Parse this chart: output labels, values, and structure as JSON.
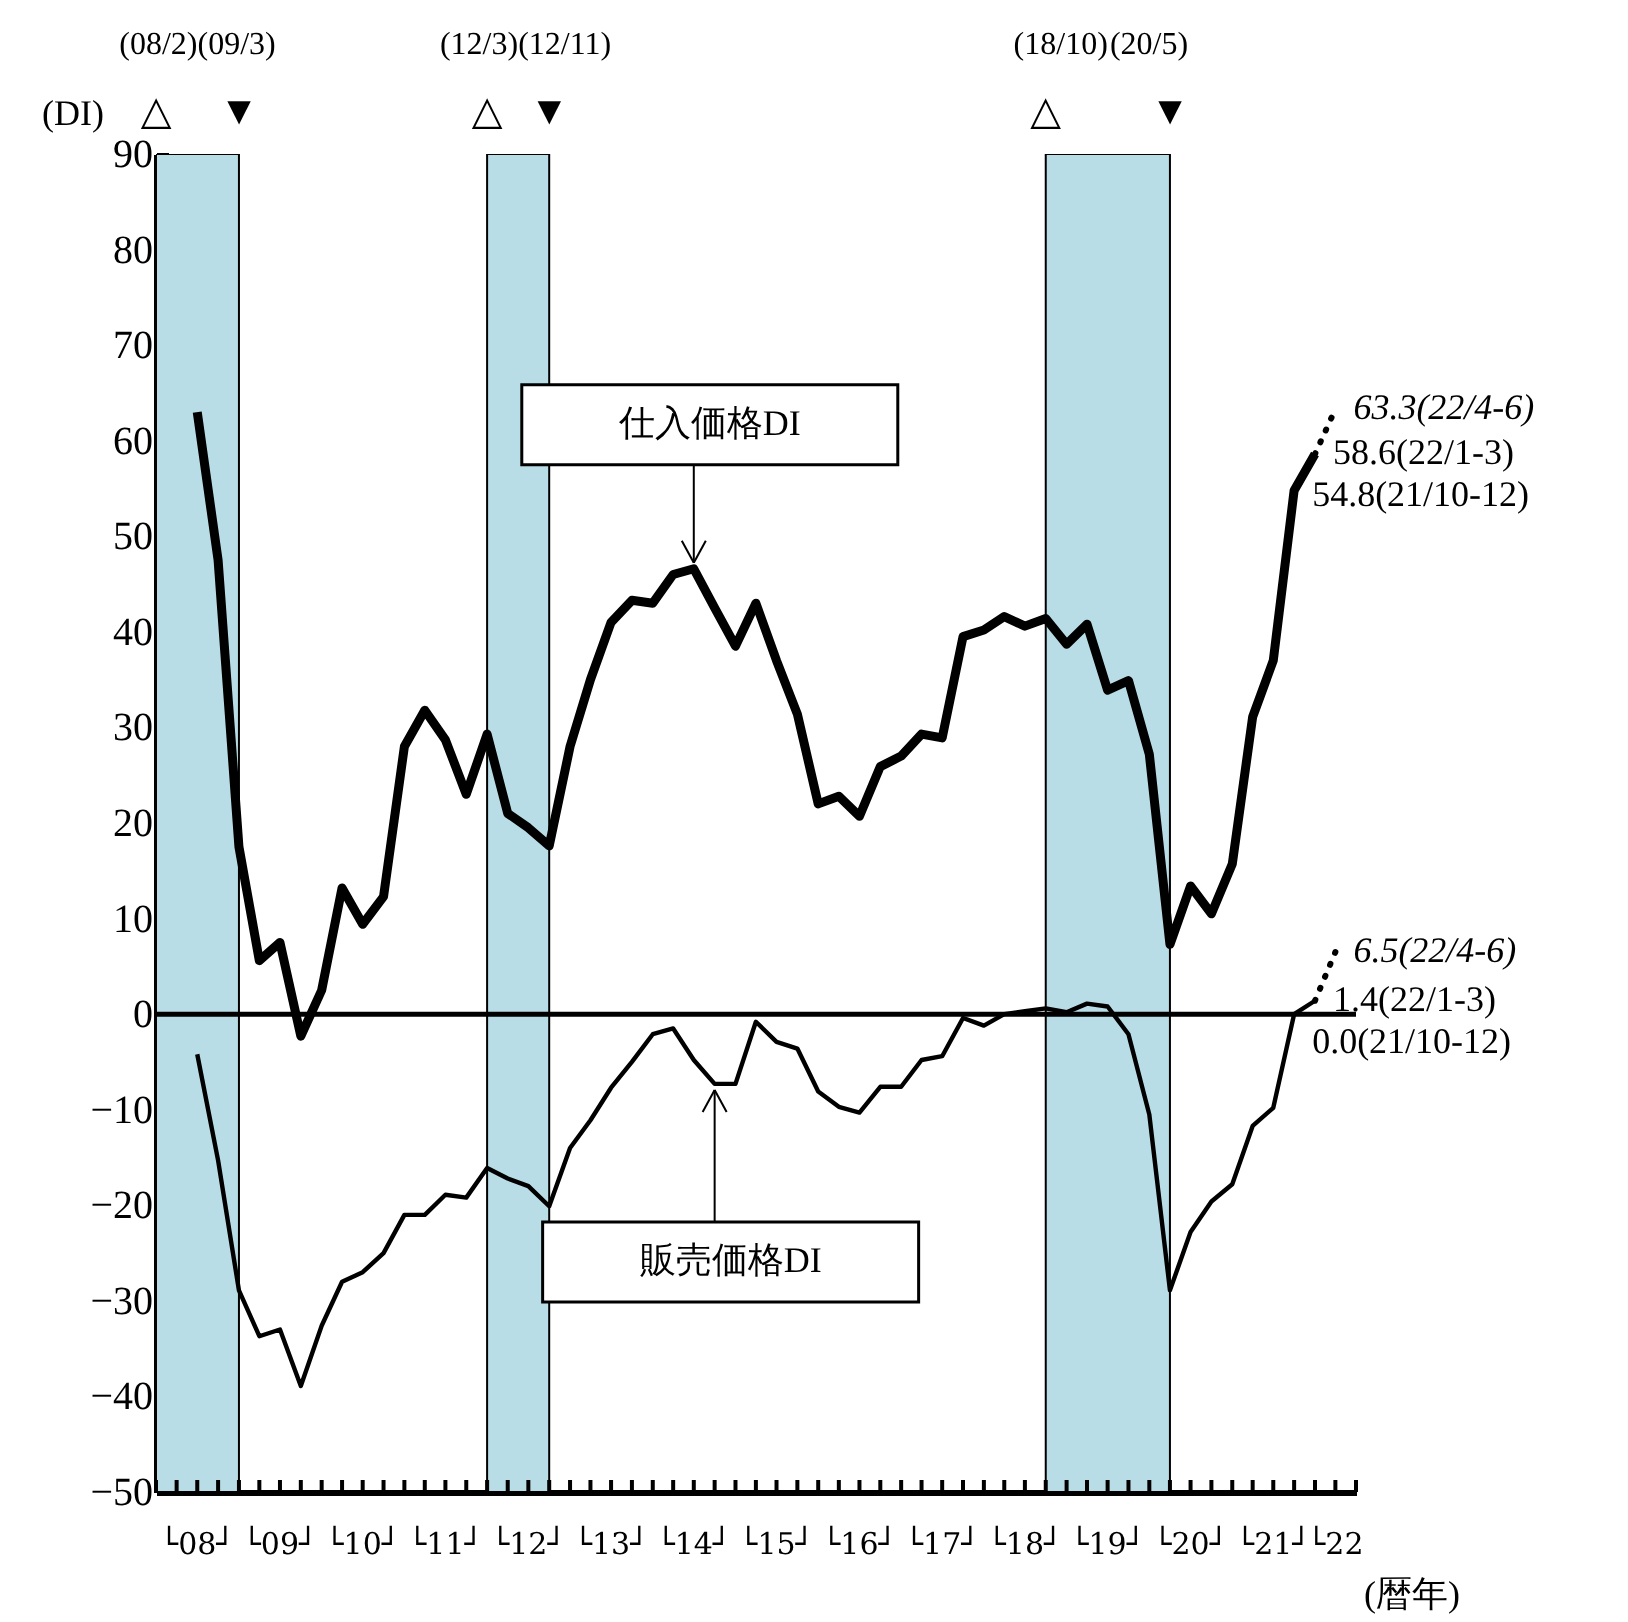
{
  "chart_data": {
    "type": "line",
    "ylabel": "(DI)",
    "xlabel": "(暦年)",
    "x": [
      "2008-07",
      "2008-10",
      "2009-01",
      "2009-04",
      "2009-07",
      "2009-10",
      "2010-01",
      "2010-04",
      "2010-07",
      "2010-10",
      "2011-01",
      "2011-04",
      "2011-07",
      "2011-10",
      "2012-01",
      "2012-04",
      "2012-07",
      "2012-10",
      "2013-01",
      "2013-04",
      "2013-07",
      "2013-10",
      "2014-01",
      "2014-04",
      "2014-07",
      "2014-10",
      "2015-01",
      "2015-04",
      "2015-07",
      "2015-10",
      "2016-01",
      "2016-04",
      "2016-07",
      "2016-10",
      "2017-01",
      "2017-04",
      "2017-07",
      "2017-10",
      "2018-01",
      "2018-04",
      "2018-07",
      "2018-10",
      "2019-01",
      "2019-04",
      "2019-07",
      "2019-10",
      "2020-01",
      "2020-04",
      "2020-07",
      "2020-10",
      "2021-01",
      "2021-04",
      "2021-07",
      "2021-10",
      "2022-01"
    ],
    "series": [
      {
        "color": "#000000",
        "values": [
          63,
          47.5,
          17.5,
          5.6,
          7.5,
          -2.3,
          2.5,
          13.2,
          9.4,
          12.3,
          28,
          31.8,
          28.7,
          23,
          29.3,
          21,
          19.5,
          17.6,
          28,
          35,
          41,
          43.3,
          43,
          46,
          46.6,
          42.5,
          38.5,
          43,
          37,
          31.4,
          22,
          22.8,
          20.7,
          25.9,
          27,
          29.3,
          28.9,
          39.5,
          40.2,
          41.6,
          40.6,
          41.4,
          38.7,
          40.8,
          33.9,
          34.9,
          27.2,
          7.3,
          13.4,
          10.5,
          15.7,
          31.1,
          37,
          54.8,
          58.6
        ],
        "value_labels": [
          null,
          null,
          null,
          null,
          null,
          null,
          null,
          null,
          null,
          null,
          null,
          null,
          null,
          null,
          null,
          null,
          null,
          null,
          null,
          null,
          null,
          null,
          null,
          null,
          null,
          null,
          null,
          null,
          null,
          null,
          null,
          null,
          null,
          null,
          null,
          null,
          null,
          null,
          null,
          null,
          null,
          null,
          null,
          null,
          null,
          null,
          null,
          null,
          null,
          null,
          null,
          null,
          null,
          "54.8(21/10-12)",
          "58.6(22/1-3)"
        ]
      },
      {
        "color": "#000000",
        "values": [
          -4.2,
          -15.3,
          -28.9,
          -33.7,
          -33,
          -38.9,
          -32.6,
          -28,
          -27,
          -25,
          -21,
          -21,
          -18.9,
          -19.2,
          -16.1,
          -17.2,
          -18,
          -20.1,
          -14,
          -11.1,
          -7.7,
          -5,
          -2.1,
          -1.5,
          -4.8,
          -7.3,
          -7.3,
          -0.8,
          -2.9,
          -3.6,
          -8.1,
          -9.7,
          -10.3,
          -7.6,
          -7.6,
          -4.8,
          -4.4,
          -0.4,
          -1.2,
          0,
          0.3,
          0.6,
          0.2,
          1.1,
          0.8,
          -2.1,
          -10.5,
          -28.9,
          -22.8,
          -19.6,
          -17.8,
          -11.7,
          -9.8,
          0.0,
          1.4
        ],
        "value_labels": [
          null,
          null,
          null,
          null,
          null,
          null,
          null,
          null,
          null,
          null,
          null,
          null,
          null,
          null,
          null,
          null,
          null,
          null,
          null,
          null,
          null,
          null,
          null,
          null,
          null,
          null,
          null,
          null,
          null,
          null,
          null,
          null,
          null,
          null,
          null,
          null,
          null,
          null,
          null,
          null,
          null,
          null,
          null,
          null,
          null,
          null,
          null,
          null,
          null,
          null,
          null,
          null,
          null,
          "0.0(21/10-12)",
          "1.4(22/1-3)"
        ]
      },
      {
        "color": "#000000",
        "line_style": "dotted",
        "x": [
          "2022-01",
          "2022-04"
        ],
        "values": [
          58.6,
          63.3
        ],
        "value_labels": [
          null,
          "63.3(22/4-6)"
        ]
      },
      {
        "color": "#000000",
        "line_style": "dotted",
        "x": [
          "2022-01",
          "2022-04"
        ],
        "values": [
          1.4,
          6.5
        ],
        "value_labels": [
          null,
          "6.5(22/4-6)"
        ]
      }
    ],
    "xlim": [
      "2008-01",
      "2022-07"
    ],
    "xticks": [
      {
        "value": "2008-01",
        "label": null
      },
      {
        "value": "2008-04",
        "label": null
      },
      {
        "value": "2008-07",
        "label": "└08┘"
      },
      {
        "value": "2008-10",
        "label": null
      },
      {
        "value": "2009-01",
        "label": null
      },
      {
        "value": "2009-04",
        "label": null
      },
      {
        "value": "2009-07",
        "label": "└09┘"
      },
      {
        "value": "2009-10",
        "label": null
      },
      {
        "value": "2010-01",
        "label": null
      },
      {
        "value": "2010-04",
        "label": null
      },
      {
        "value": "2010-07",
        "label": "└10┘"
      },
      {
        "value": "2010-10",
        "label": null
      },
      {
        "value": "2011-01",
        "label": null
      },
      {
        "value": "2011-04",
        "label": null
      },
      {
        "value": "2011-07",
        "label": "└11┘"
      },
      {
        "value": "2011-10",
        "label": null
      },
      {
        "value": "2012-01",
        "label": null
      },
      {
        "value": "2012-04",
        "label": null
      },
      {
        "value": "2012-07",
        "label": "└12┘"
      },
      {
        "value": "2012-10",
        "label": null
      },
      {
        "value": "2013-01",
        "label": null
      },
      {
        "value": "2013-04",
        "label": null
      },
      {
        "value": "2013-07",
        "label": "└13┘"
      },
      {
        "value": "2013-10",
        "label": null
      },
      {
        "value": "2014-01",
        "label": null
      },
      {
        "value": "2014-04",
        "label": null
      },
      {
        "value": "2014-07",
        "label": "└14┘"
      },
      {
        "value": "2014-10",
        "label": null
      },
      {
        "value": "2015-01",
        "label": null
      },
      {
        "value": "2015-04",
        "label": null
      },
      {
        "value": "2015-07",
        "label": "└15┘"
      },
      {
        "value": "2015-10",
        "label": null
      },
      {
        "value": "2016-01",
        "label": null
      },
      {
        "value": "2016-04",
        "label": null
      },
      {
        "value": "2016-07",
        "label": "└16┘"
      },
      {
        "value": "2016-10",
        "label": null
      },
      {
        "value": "2017-01",
        "label": null
      },
      {
        "value": "2017-04",
        "label": null
      },
      {
        "value": "2017-07",
        "label": "└17┘"
      },
      {
        "value": "2017-10",
        "label": null
      },
      {
        "value": "2018-01",
        "label": null
      },
      {
        "value": "2018-04",
        "label": null
      },
      {
        "value": "2018-07",
        "label": "└18┘"
      },
      {
        "value": "2018-10",
        "label": null
      },
      {
        "value": "2019-01",
        "label": null
      },
      {
        "value": "2019-04",
        "label": null
      },
      {
        "value": "2019-07",
        "label": "└19┘"
      },
      {
        "value": "2019-10",
        "label": null
      },
      {
        "value": "2020-01",
        "label": null
      },
      {
        "value": "2020-04",
        "label": null
      },
      {
        "value": "2020-07",
        "label": "└20┘"
      },
      {
        "value": "2020-10",
        "label": null
      },
      {
        "value": "2021-01",
        "label": null
      },
      {
        "value": "2021-04",
        "label": null
      },
      {
        "value": "2021-07",
        "label": "└21┘"
      },
      {
        "value": "2021-10",
        "label": null
      },
      {
        "value": "2022-01",
        "label": null
      },
      {
        "value": "2022-04",
        "label": "└22"
      },
      {
        "value": "2022-07",
        "label": null
      }
    ],
    "ylim": [
      -50,
      90
    ],
    "yticks": [
      90,
      80,
      70,
      60,
      50,
      40,
      30,
      20,
      10,
      0,
      {
        "value": -10,
        "label": "−10"
      },
      {
        "value": -20,
        "label": "−20"
      },
      {
        "value": -30,
        "label": "−30"
      },
      {
        "value": -40,
        "label": "−40"
      },
      {
        "value": -50,
        "label": "−50"
      }
    ],
    "ref_lines": [
      {
        "axis": "y",
        "value": 0
      }
    ],
    "bands": [
      {
        "axis": "x",
        "from": "2008-01",
        "to": "2009-01",
        "color": "#b8dde6"
      },
      {
        "axis": "x",
        "from": "2012-01",
        "to": "2012-10",
        "color": "#b8dde6"
      },
      {
        "axis": "x",
        "from": "2018-10",
        "to": "2020-04",
        "color": "#b8dde6"
      }
    ],
    "annotations": [
      "(08/2)",
      "△",
      "(09/3)",
      "▼",
      "(12/3)",
      "△",
      "(12/11)",
      "▼",
      "(18/10)",
      "△",
      "(20/5)",
      "▼",
      {
        "text": "仕入価格DI",
        "x": "2014-07",
        "y": 46.6
      },
      {
        "text": "販売価格DI",
        "x": "2014-10",
        "y": -7.3
      }
    ]
  }
}
